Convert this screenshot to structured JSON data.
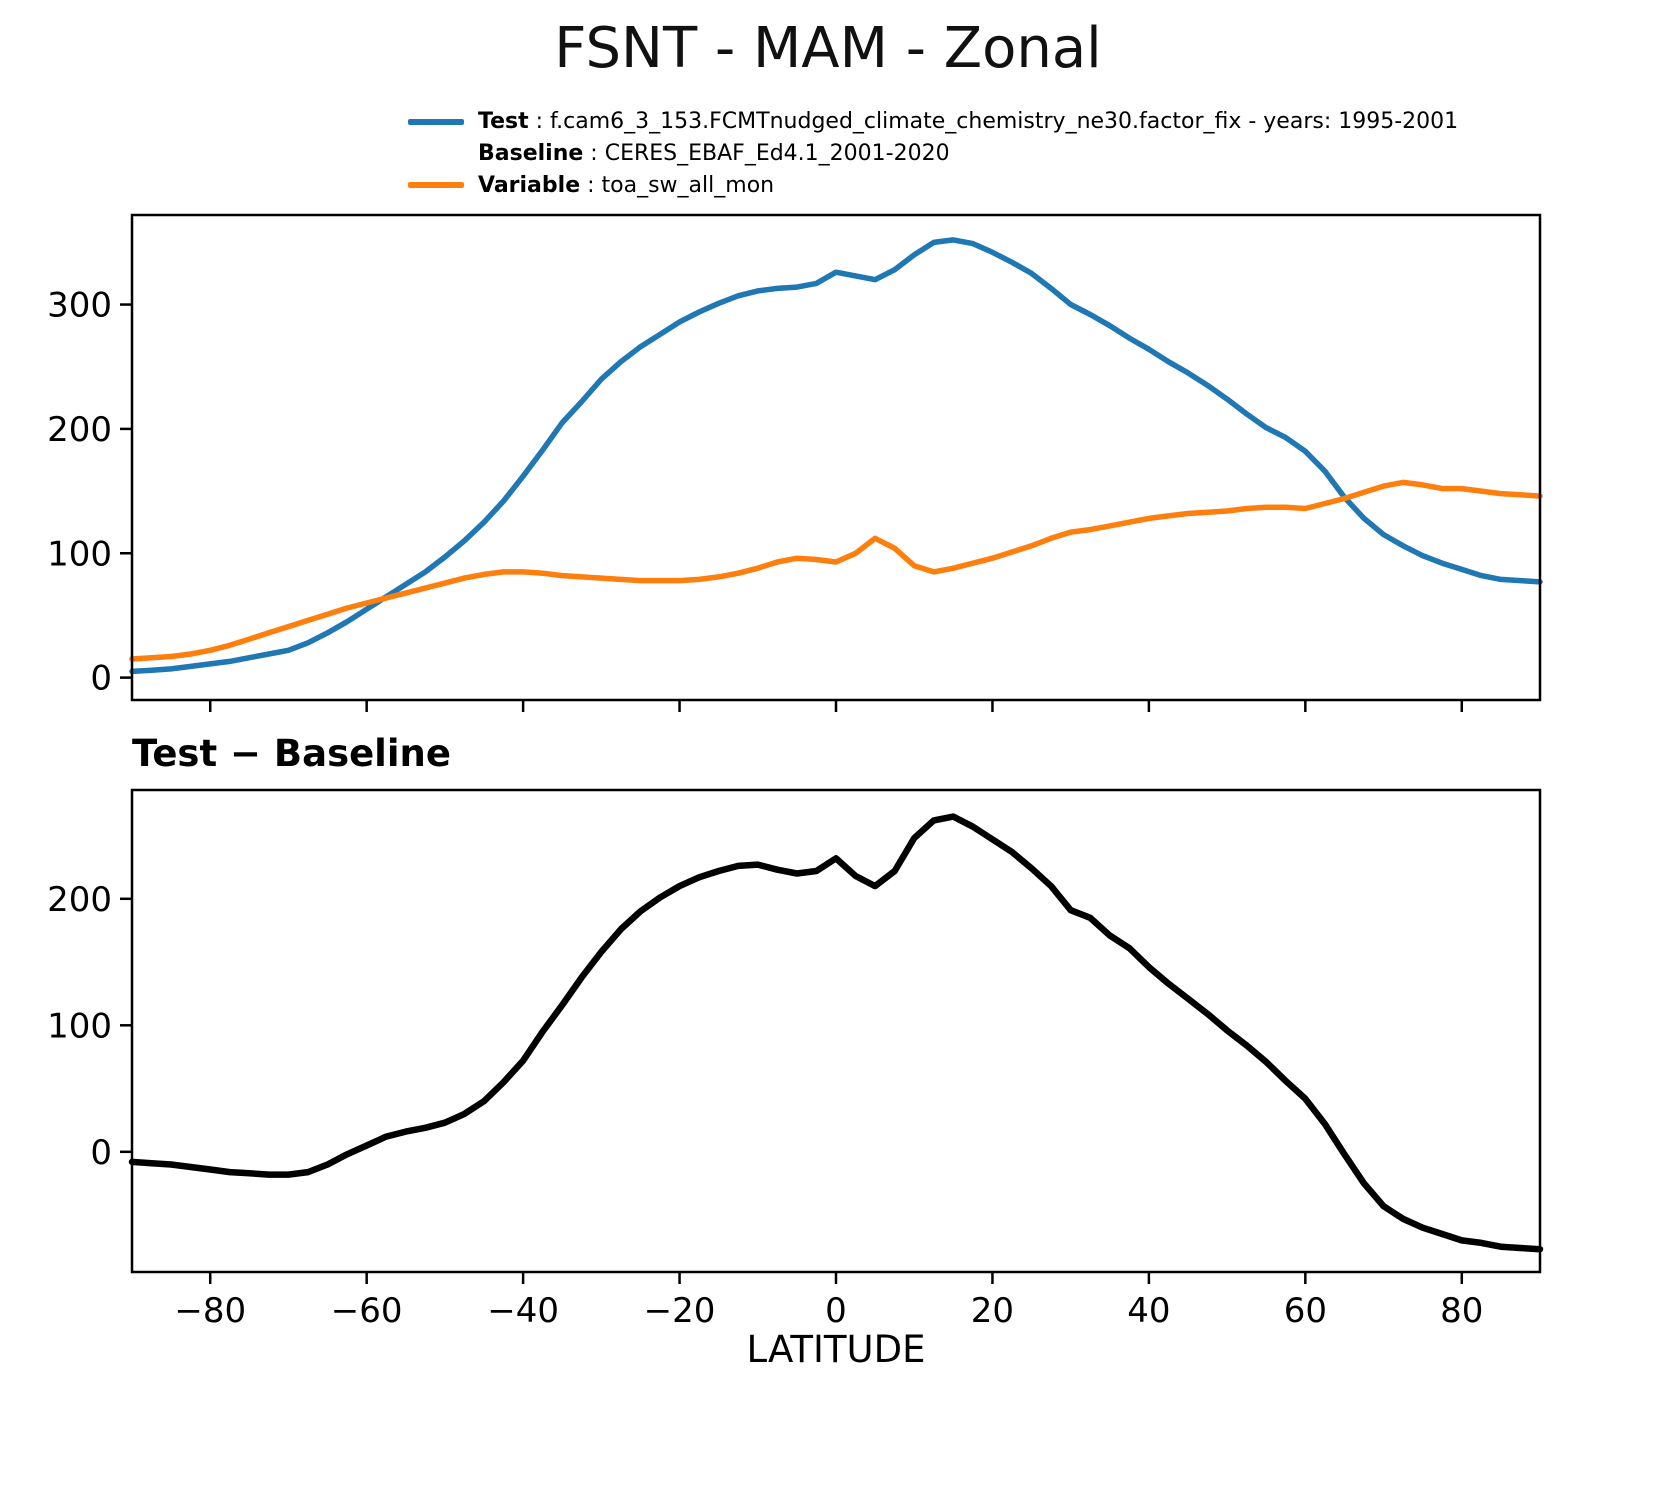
{
  "title": "FSNT - MAM - Zonal",
  "legend": {
    "separator": " : ",
    "rows": [
      {
        "label": "Test",
        "value": "f.cam6_3_153.FCMTnudged_climate_chemistry_ne30.factor_fix - years: 1995-2001",
        "swatch": "#1f77b4"
      },
      {
        "label": "Baseline",
        "value": "CERES_EBAF_Ed4.1_2001-2020",
        "swatch": null
      },
      {
        "label": "Variable",
        "value": "toa_sw_all_mon",
        "swatch": "#ff7f0e"
      }
    ]
  },
  "chart_data": {
    "type": "line",
    "title": "FSNT - MAM - Zonal",
    "x_label": "LATITUDE",
    "xlim": [
      -90,
      90
    ],
    "xticks": [
      -80,
      -60,
      -40,
      -20,
      0,
      20,
      40,
      60,
      80
    ],
    "xtick_labels": [
      "−80",
      "−60",
      "−40",
      "−20",
      "0",
      "20",
      "40",
      "60",
      "80"
    ],
    "x": [
      -90,
      -87.5,
      -85,
      -82.5,
      -80,
      -77.5,
      -75,
      -72.5,
      -70,
      -67.5,
      -65,
      -62.5,
      -60,
      -57.5,
      -55,
      -52.5,
      -50,
      -47.5,
      -45,
      -42.5,
      -40,
      -37.5,
      -35,
      -32.5,
      -30,
      -27.5,
      -25,
      -22.5,
      -20,
      -17.5,
      -15,
      -12.5,
      -10,
      -7.5,
      -5,
      -2.5,
      0,
      2.5,
      5,
      7.5,
      10,
      12.5,
      15,
      17.5,
      20,
      22.5,
      25,
      27.5,
      30,
      32.5,
      35,
      37.5,
      40,
      42.5,
      45,
      47.5,
      50,
      52.5,
      55,
      57.5,
      60,
      62.5,
      65,
      67.5,
      70,
      72.5,
      75,
      77.5,
      80,
      82.5,
      85,
      87.5,
      90
    ],
    "plots": [
      {
        "name": "zonal-mean",
        "title": "",
        "ylim": [
          -18,
          372
        ],
        "yticks": [
          0,
          100,
          200,
          300
        ],
        "ytick_labels": [
          "0",
          "100",
          "200",
          "300"
        ],
        "show_xtick_labels": false,
        "series": [
          {
            "name": "Test",
            "color": "#1f77b4",
            "linewidth": 5.5,
            "values": [
              5,
              6,
              7,
              9,
              11,
              13,
              16,
              19,
              22,
              28,
              36,
              45,
              55,
              65,
              75,
              85,
              97,
              110,
              125,
              142,
              162,
              183,
              205,
              222,
              240,
              254,
              266,
              276,
              286,
              294,
              301,
              307,
              311,
              313,
              314,
              317,
              326,
              323,
              320,
              328,
              340,
              350,
              352,
              349,
              342,
              334,
              325,
              313,
              300,
              292,
              283,
              273,
              264,
              254,
              245,
              235,
              224,
              212,
              201,
              193,
              182,
              166,
              145,
              128,
              115,
              106,
              98,
              92,
              87,
              82,
              79,
              78,
              77
            ]
          },
          {
            "name": "Baseline",
            "color": "#ff7f0e",
            "linewidth": 5.5,
            "values": [
              15,
              16,
              17,
              19,
              22,
              26,
              31,
              36,
              41,
              46,
              51,
              56,
              60,
              64,
              68,
              72,
              76,
              80,
              83,
              85,
              85,
              84,
              82,
              81,
              80,
              79,
              78,
              78,
              78,
              79,
              81,
              84,
              88,
              93,
              96,
              95,
              93,
              100,
              112,
              104,
              90,
              85,
              88,
              92,
              96,
              101,
              106,
              112,
              117,
              119,
              122,
              125,
              128,
              130,
              132,
              133,
              134,
              136,
              137,
              137,
              136,
              140,
              144,
              149,
              154,
              157,
              155,
              152,
              152,
              150,
              148,
              147,
              146
            ]
          }
        ]
      },
      {
        "name": "difference",
        "title": "Test − Baseline",
        "ylim": [
          -95,
          286
        ],
        "yticks": [
          0,
          100,
          200
        ],
        "ytick_labels": [
          "0",
          "100",
          "200"
        ],
        "show_xtick_labels": true,
        "series": [
          {
            "name": "Test − Baseline",
            "color": "#000000",
            "linewidth": 6.5,
            "values": [
              -8,
              -9,
              -10,
              -12,
              -14,
              -16,
              -17,
              -18,
              -18,
              -16,
              -10,
              -2,
              5,
              12,
              16,
              19,
              23,
              30,
              40,
              55,
              72,
              95,
              116,
              138,
              158,
              176,
              190,
              201,
              210,
              217,
              222,
              226,
              227,
              223,
              220,
              222,
              232,
              218,
              210,
              222,
              248,
              262,
              265,
              257,
              247,
              237,
              224,
              210,
              191,
              185,
              171,
              161,
              146,
              133,
              121,
              109,
              96,
              84,
              71,
              56,
              42,
              22,
              -2,
              -25,
              -43,
              -53,
              -60,
              -65,
              -70,
              -72,
              -75,
              -76,
              -77
            ]
          }
        ]
      }
    ]
  }
}
